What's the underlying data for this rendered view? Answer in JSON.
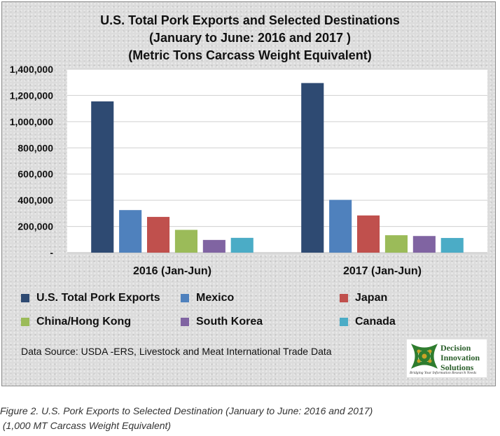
{
  "chart_data": {
    "type": "bar",
    "title": "U.S. Total Pork Exports and Selected Destinations",
    "subtitle": "(January to June: 2016 and 2017 )",
    "subtitle2": "(Metric Tons Carcass Weight Equivalent)",
    "categories": [
      "2016 (Jan-Jun)",
      "2017 (Jan-Jun)"
    ],
    "series": [
      {
        "name": "U.S. Total Pork  Exports",
        "values": [
          1155000,
          1295000
        ],
        "color": "#2e4a72"
      },
      {
        "name": "Mexico",
        "values": [
          325000,
          403000
        ],
        "color": "#4f81bd"
      },
      {
        "name": "Japan",
        "values": [
          273000,
          284000
        ],
        "color": "#c0504d"
      },
      {
        "name": "China/Hong Kong",
        "values": [
          174000,
          133000
        ],
        "color": "#9bbb59"
      },
      {
        "name": "South Korea",
        "values": [
          97000,
          127000
        ],
        "color": "#8064a2"
      },
      {
        "name": "Canada",
        "values": [
          113000,
          112000
        ],
        "color": "#4bacc6"
      }
    ],
    "ylim": [
      0,
      1400000
    ],
    "y_ticks": [
      {
        "value": 0,
        "label": "-"
      },
      {
        "value": 200000,
        "label": "200,000"
      },
      {
        "value": 400000,
        "label": "400,000"
      },
      {
        "value": 600000,
        "label": "600,000"
      },
      {
        "value": 800000,
        "label": "800,000"
      },
      {
        "value": 1000000,
        "label": "1,000,000"
      },
      {
        "value": 1200000,
        "label": "1,200,000"
      },
      {
        "value": 1400000,
        "label": "1,400,000"
      }
    ],
    "grid": true,
    "legend": "bottom"
  },
  "source_text": "Data Source: USDA -ERS, Livestock and Meat International Trade Data",
  "logo": {
    "line1": "Decision",
    "line2": "Innovation",
    "line3": "Solutions",
    "tagline": "Bridging Your Information Research Needs"
  },
  "caption": {
    "line1": "Figure 2. U.S. Pork Exports to Selected Destination (January to June: 2016 and 2017)",
    "line2": " (1,000 MT Carcass Weight Equivalent)"
  }
}
